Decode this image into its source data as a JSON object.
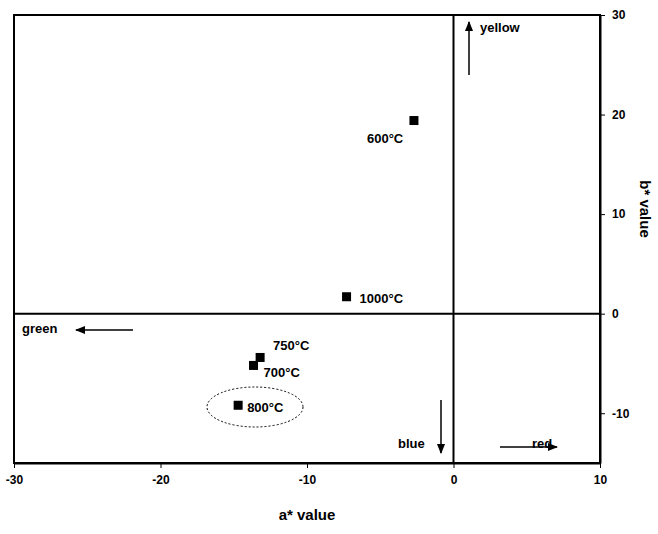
{
  "chart_data": {
    "type": "scatter",
    "x": [
      -2.7,
      -7.3,
      -13.2,
      -13.65,
      -14.7
    ],
    "values": [
      19.4,
      1.7,
      -4.4,
      -5.2,
      -9.2
    ],
    "labels": [
      "600°C",
      "1000°C",
      "750°C",
      "700°C",
      "800°C"
    ],
    "xlim": [
      -30,
      10
    ],
    "xticks": [
      -30,
      -20,
      -10,
      0,
      10
    ],
    "ylim": [
      -15,
      30
    ],
    "yticks": [
      -10,
      0,
      10,
      20,
      30
    ],
    "x_label": "a* value",
    "y_label": "b* value",
    "annotations": [
      "yellow",
      "green",
      "blue",
      "red"
    ],
    "marker": "square",
    "color": "#000000",
    "grid": false
  }
}
